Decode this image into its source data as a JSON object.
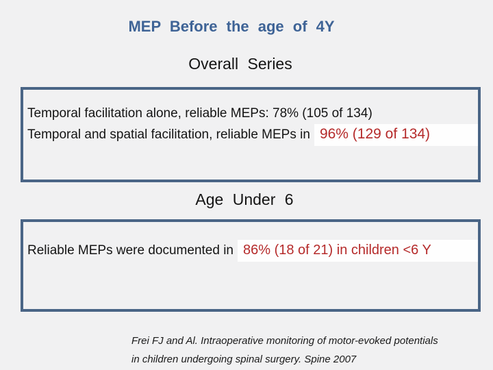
{
  "slide": {
    "title": "MEP Before the age of 4Y",
    "section_overall": {
      "heading": "Overall Series",
      "box": {
        "line1": "Temporal facilitation alone, reliable MEPs: 78% (105 of 134)",
        "line2_plain": "Temporal and spatial facilitation, reliable MEPs in",
        "line2_highlight": "96% (129 of 134)"
      }
    },
    "section_under6": {
      "heading": "Age Under 6",
      "box": {
        "line1_plain": "Reliable MEPs were documented in",
        "line1_highlight": "86% (18 of 21) in children <6 Y"
      }
    },
    "citation": {
      "line1": "Frei FJ and Al. Intraoperative monitoring of motor-evoked potentials",
      "line2": "in children undergoing spinal surgery. Spine 2007"
    },
    "colors": {
      "background": "#f1f1f2",
      "title_blue": "#3e6396",
      "border_blue": "#4a6586",
      "accent_red": "#b52a2a",
      "highlight_bg": "#fefefe"
    }
  }
}
